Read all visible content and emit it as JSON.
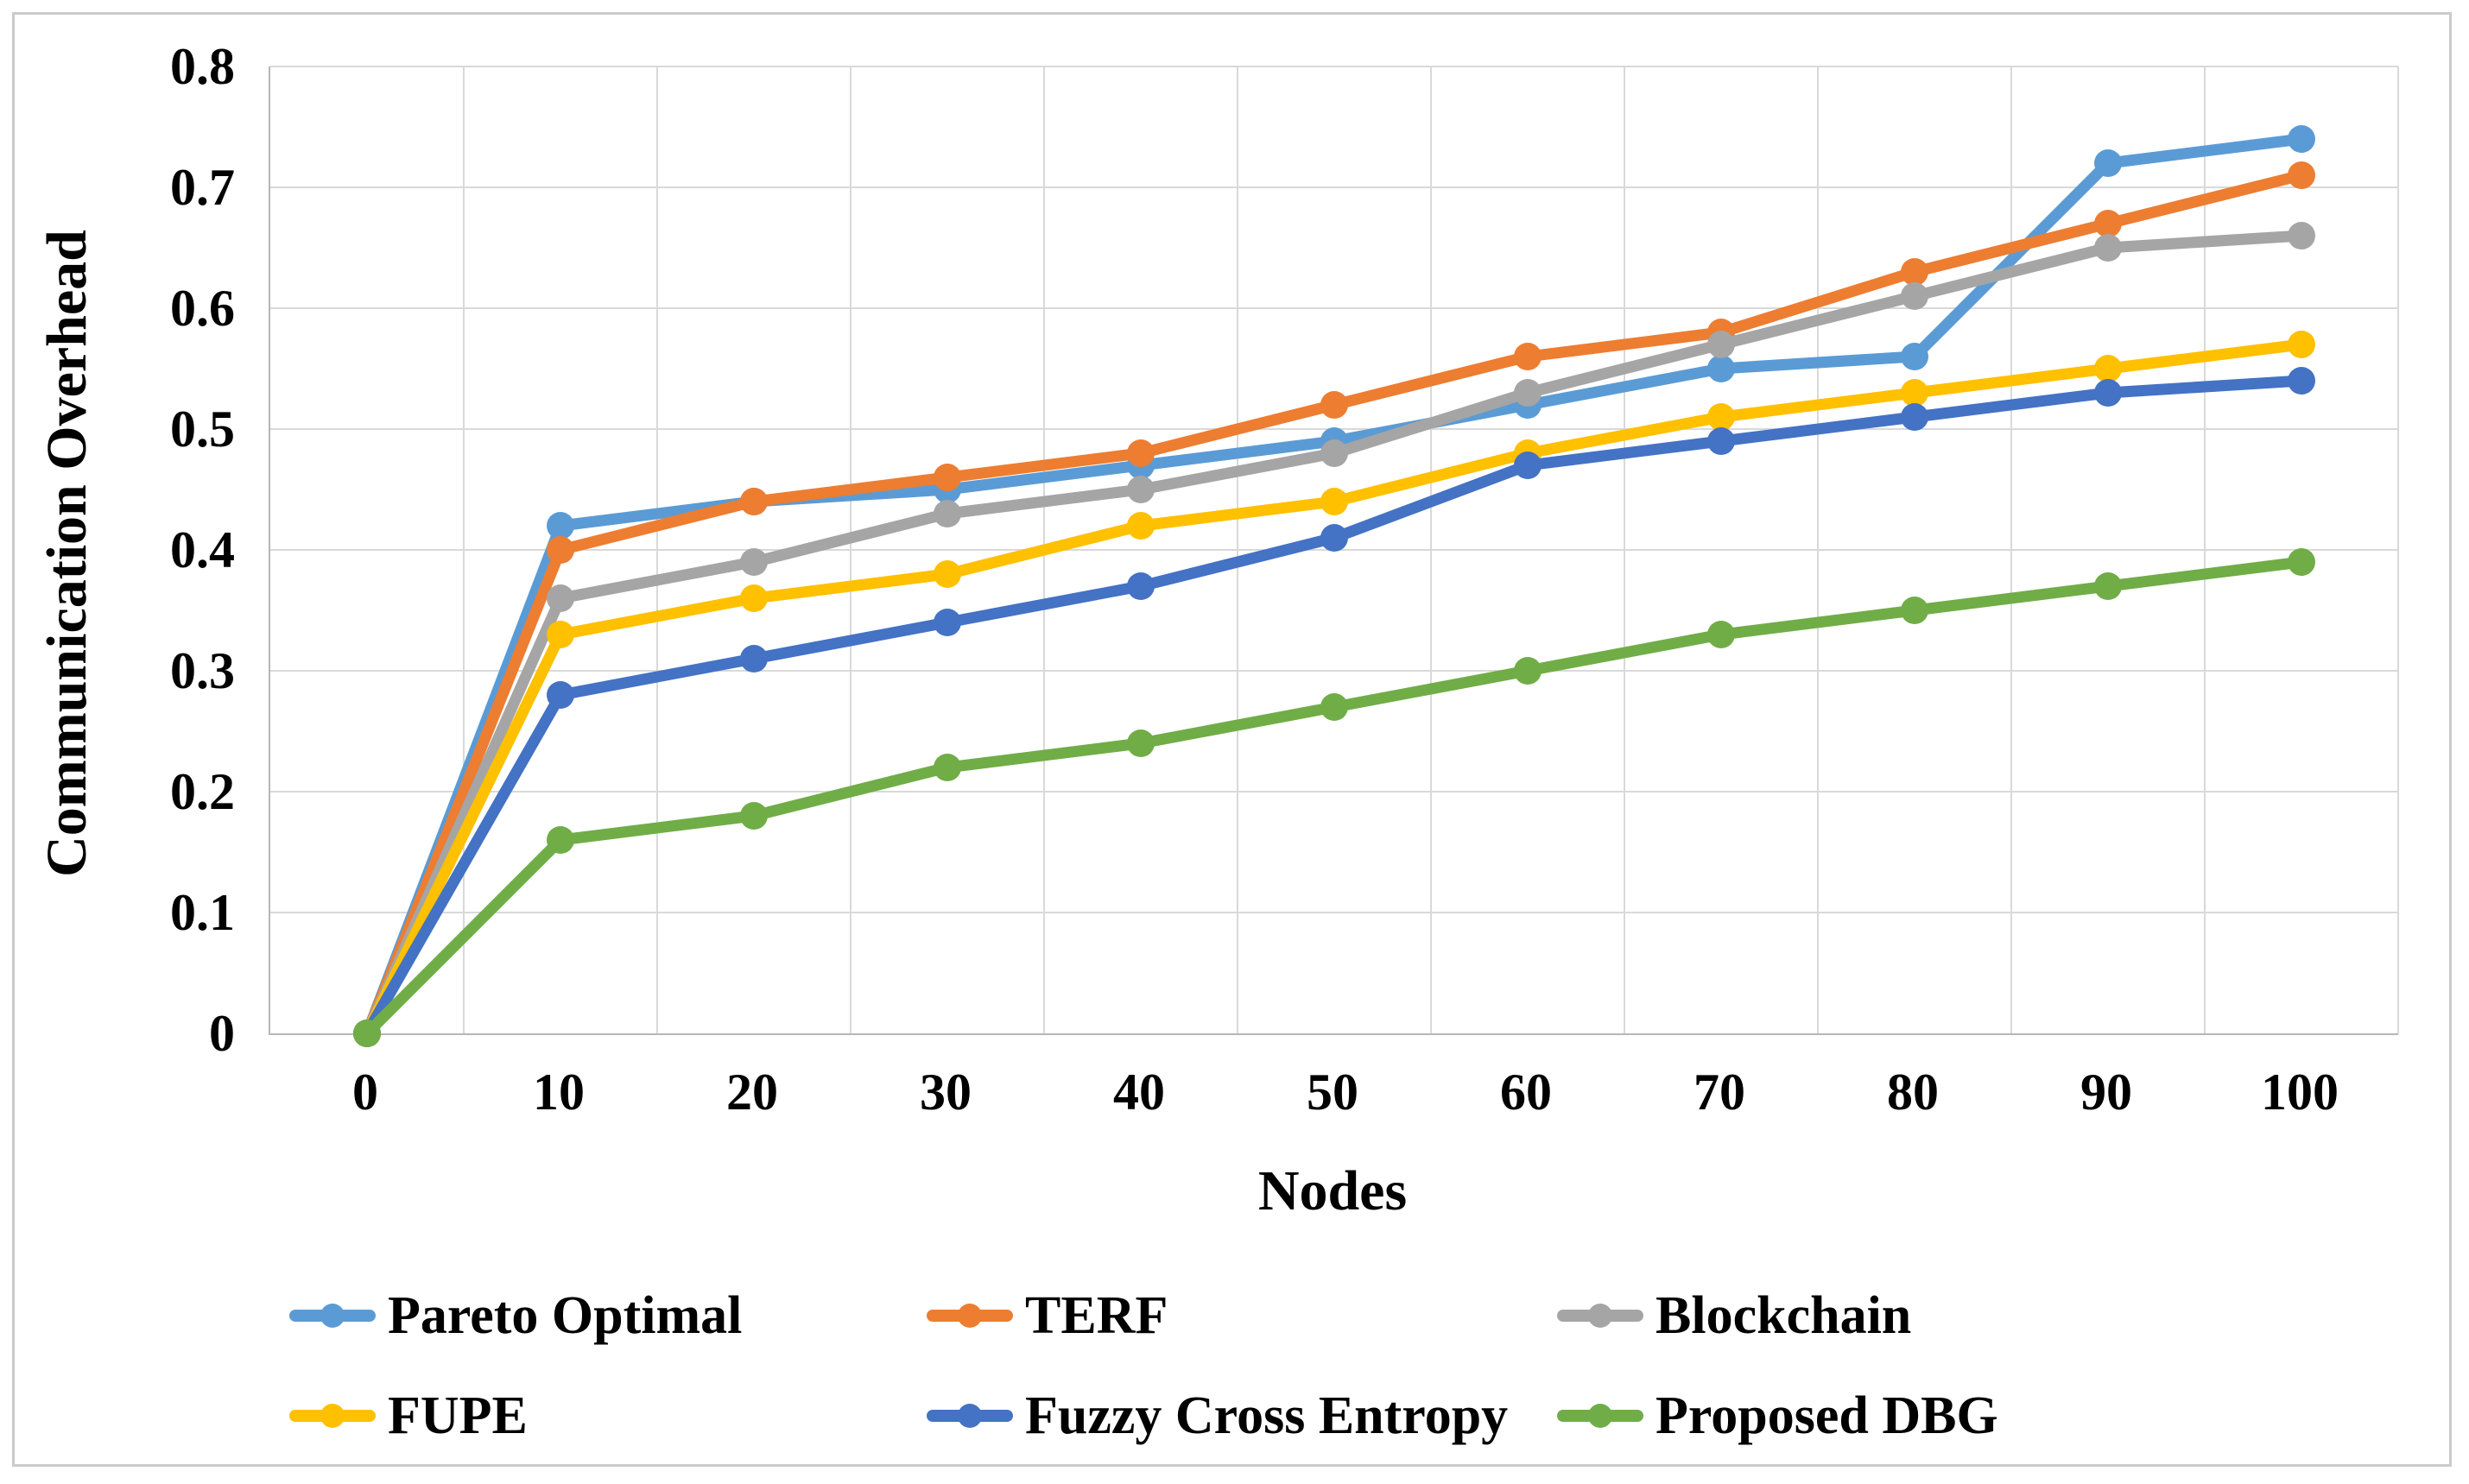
{
  "figure": {
    "kind": "excel-style line chart",
    "background": "#ffffff",
    "frame_color": "#cbcbcb"
  },
  "axes": {
    "y_title": "Communication Overhead",
    "x_title": "Nodes",
    "y_ticks": [
      "0",
      "0.1",
      "0.2",
      "0.3",
      "0.4",
      "0.5",
      "0.6",
      "0.7",
      "0.8"
    ],
    "x_ticks": [
      "0",
      "10",
      "20",
      "30",
      "40",
      "50",
      "60",
      "70",
      "80",
      "90",
      "100"
    ]
  },
  "colors": {
    "gridline": "#d9d9d9",
    "axis_line": "#b7b7b7",
    "text": "#000000"
  },
  "chart_data": {
    "type": "line",
    "title": "",
    "xlabel": "Nodes",
    "ylabel": "Communication Overhead",
    "x": [
      0,
      10,
      20,
      30,
      40,
      50,
      60,
      70,
      80,
      90,
      100
    ],
    "ylim": [
      0,
      0.8
    ],
    "y_tick_step": 0.1,
    "grid": true,
    "legend_position": "bottom",
    "marker": "circle",
    "series": [
      {
        "name": "Pareto Optimal",
        "color": "#5B9BD5",
        "values": [
          0,
          0.42,
          0.44,
          0.45,
          0.47,
          0.49,
          0.52,
          0.55,
          0.56,
          0.72,
          0.74
        ]
      },
      {
        "name": "TERF",
        "color": "#ED7D31",
        "values": [
          0,
          0.4,
          0.44,
          0.46,
          0.48,
          0.52,
          0.56,
          0.58,
          0.63,
          0.67,
          0.71
        ]
      },
      {
        "name": "Blockchain",
        "color": "#A5A5A5",
        "values": [
          0,
          0.36,
          0.39,
          0.43,
          0.45,
          0.48,
          0.53,
          0.57,
          0.61,
          0.65,
          0.66
        ]
      },
      {
        "name": "FUPE",
        "color": "#FFC000",
        "values": [
          0,
          0.33,
          0.36,
          0.38,
          0.42,
          0.44,
          0.48,
          0.51,
          0.53,
          0.55,
          0.57
        ]
      },
      {
        "name": "Fuzzy Cross Entropy",
        "color": "#4472C4",
        "values": [
          0,
          0.28,
          0.31,
          0.34,
          0.37,
          0.41,
          0.47,
          0.49,
          0.51,
          0.53,
          0.54
        ]
      },
      {
        "name": "Proposed DBG",
        "color": "#70AD47",
        "values": [
          0,
          0.16,
          0.18,
          0.22,
          0.24,
          0.27,
          0.3,
          0.33,
          0.35,
          0.37,
          0.39
        ]
      }
    ]
  }
}
